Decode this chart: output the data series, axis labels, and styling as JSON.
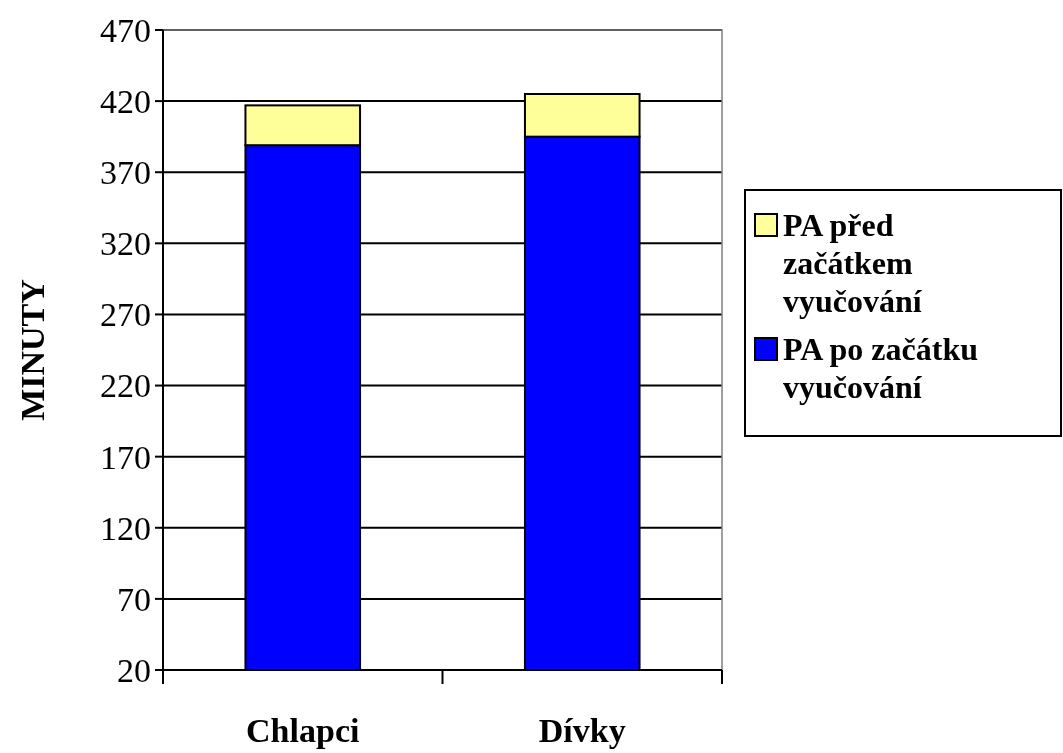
{
  "chart_data": {
    "type": "bar",
    "stacked": true,
    "ylabel": "MINUTY",
    "categories": [
      "Chlapci",
      "Dívky"
    ],
    "series": [
      {
        "name": "PA po začátku vyučování",
        "color": "#0000ff",
        "values": [
          389,
          395
        ]
      },
      {
        "name": "PA před začátkem vyučování",
        "color": "#ffff99",
        "values": [
          28,
          30
        ]
      }
    ],
    "ylim": [
      20,
      470
    ],
    "yticks": [
      20,
      70,
      120,
      170,
      220,
      270,
      320,
      370,
      420,
      470
    ],
    "grid": "y",
    "legend": "right"
  }
}
